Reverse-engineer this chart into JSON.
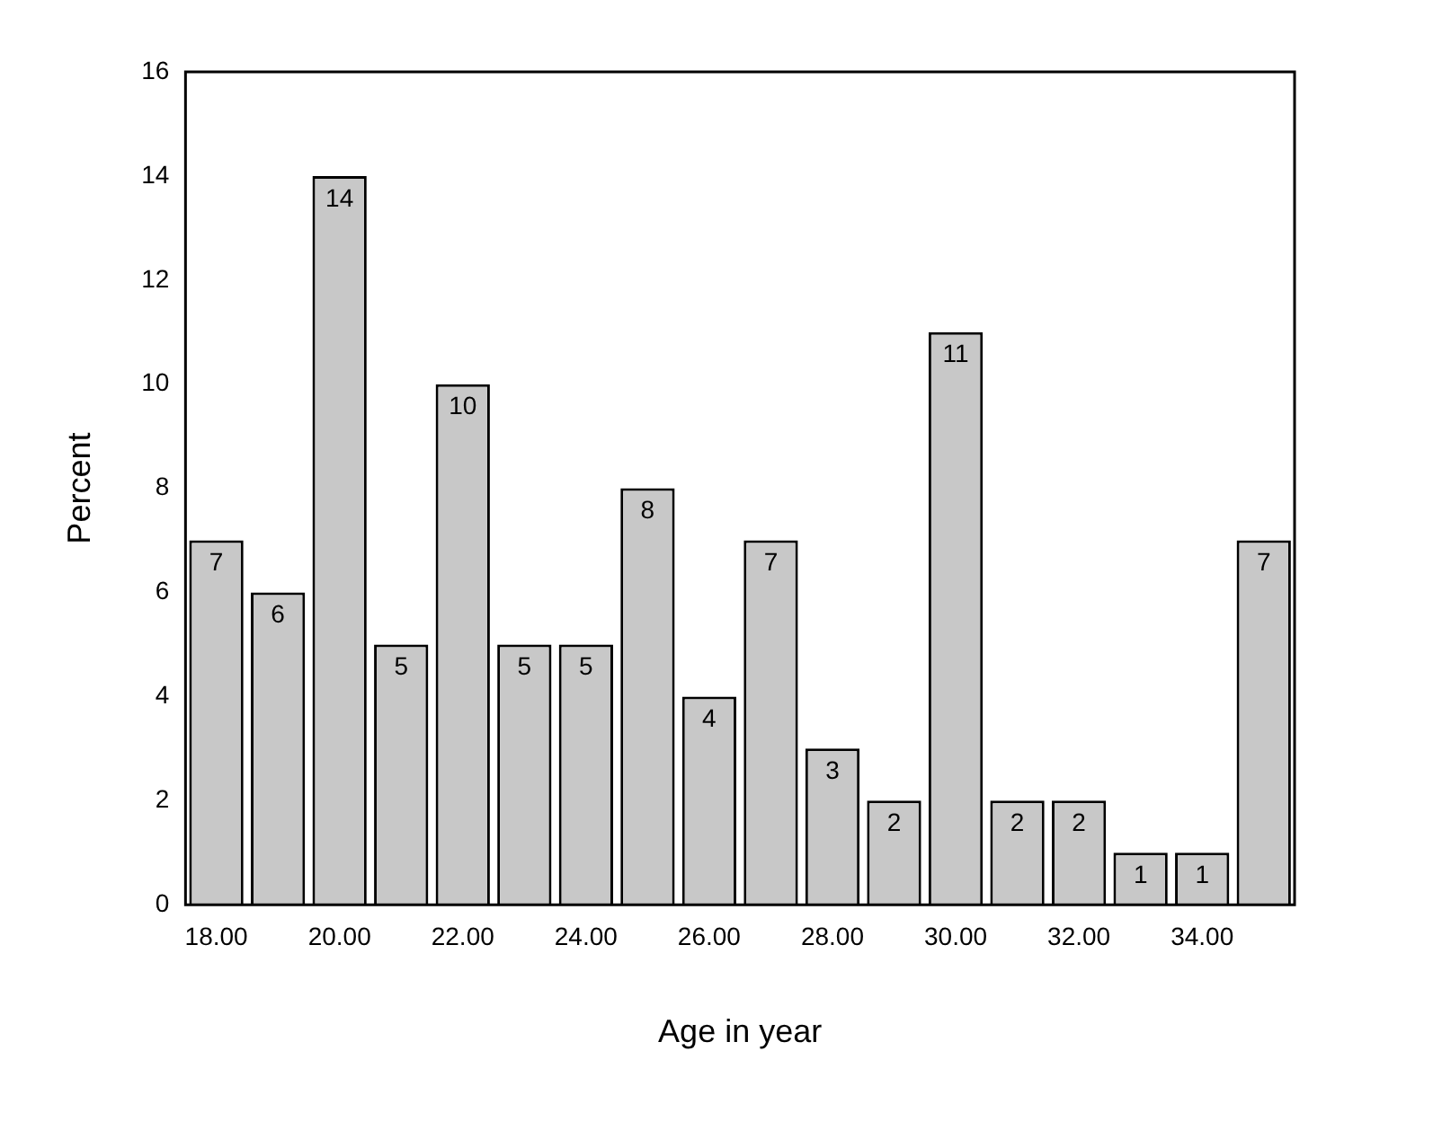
{
  "chart_data": {
    "type": "bar",
    "xlabel": "Age in year",
    "ylabel": "Percent",
    "categories": [
      "18.00",
      null,
      "20.00",
      null,
      "22.00",
      null,
      "24.00",
      null,
      "26.00",
      null,
      "28.00",
      null,
      "30.00",
      null,
      "32.00",
      null,
      "34.00",
      null
    ],
    "values": [
      7,
      6,
      14,
      5,
      10,
      5,
      5,
      8,
      4,
      7,
      3,
      2,
      11,
      2,
      2,
      1,
      1,
      7
    ],
    "color": "#c8c8c8",
    "ylim": [
      0,
      16
    ],
    "yticks": [
      0,
      2,
      4,
      6,
      8,
      10,
      12,
      14,
      16
    ],
    "grid": false,
    "legend": false,
    "data_labels": true
  }
}
